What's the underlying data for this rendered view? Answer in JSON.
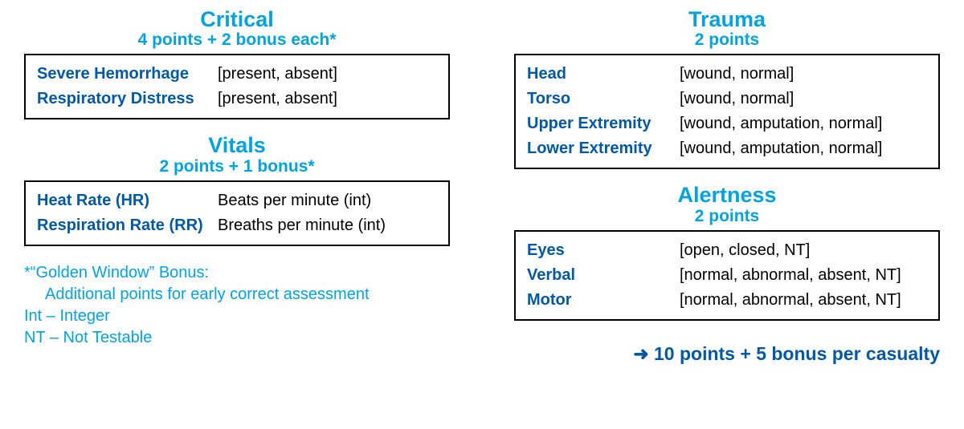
{
  "colors": {
    "accent_light": "#00a3e0",
    "accent_dark": "#0058a6",
    "text": "#000000",
    "border": "#000000",
    "background": "#ffffff"
  },
  "typography": {
    "title_fontsize_pt": 27,
    "subtitle_fontsize_pt": 21,
    "body_fontsize_pt": 20,
    "total_fontsize_pt": 23,
    "weight_bold": 700
  },
  "left": {
    "critical": {
      "title": "Critical",
      "subtitle": "4 points + 2 bonus each*",
      "rows": [
        {
          "label": "Severe Hemorrhage",
          "value": "[present, absent]"
        },
        {
          "label": "Respiratory Distress",
          "value": "[present, absent]"
        }
      ]
    },
    "vitals": {
      "title": "Vitals",
      "subtitle": "2 points + 1 bonus*",
      "rows": [
        {
          "label": "Heat Rate (HR)",
          "value": "Beats per minute (int)"
        },
        {
          "label": "Respiration Rate (RR)",
          "value": "Breaths per minute (int)"
        }
      ]
    },
    "notes": {
      "line1": "*“Golden Window” Bonus:",
      "line2": "Additional points for early correct assessment",
      "line3": "Int – Integer",
      "line4": "NT – Not Testable"
    }
  },
  "right": {
    "trauma": {
      "title": "Trauma",
      "subtitle": "2 points",
      "rows": [
        {
          "label": "Head",
          "value": "[wound, normal]"
        },
        {
          "label": "Torso",
          "value": "[wound, normal]"
        },
        {
          "label": "Upper Extremity",
          "value": "[wound, amputation, normal]"
        },
        {
          "label": "Lower Extremity",
          "value": "[wound, amputation, normal]"
        }
      ]
    },
    "alertness": {
      "title": "Alertness",
      "subtitle": "2 points",
      "rows": [
        {
          "label": "Eyes",
          "value": "[open, closed, NT]"
        },
        {
          "label": "Verbal",
          "value": "[normal, abnormal, absent, NT]"
        },
        {
          "label": "Motor",
          "value": "[normal, abnormal, absent, NT]"
        }
      ]
    },
    "total": {
      "arrow": "➜",
      "text": "10 points + 5 bonus per casualty"
    }
  }
}
